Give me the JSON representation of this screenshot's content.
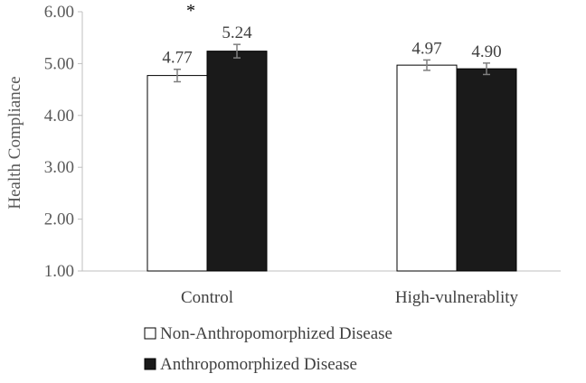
{
  "chart_data": {
    "type": "bar",
    "title": "",
    "xlabel": "",
    "ylabel": "Health Compliance",
    "ylim": [
      1.0,
      6.0
    ],
    "yticks": [
      "1.00",
      "2.00",
      "3.00",
      "4.00",
      "5.00",
      "6.00"
    ],
    "categories": [
      "Control",
      "High-vulnerablity"
    ],
    "series": [
      {
        "name": "Non-Anthropomorphized Disease",
        "values": [
          4.77,
          4.97
        ],
        "labels": [
          "4.77",
          "4.97"
        ],
        "error": [
          0.12,
          0.1
        ],
        "fill": "#ffffff"
      },
      {
        "name": "Anthropomorphized Disease",
        "values": [
          5.24,
          4.9
        ],
        "labels": [
          "5.24",
          "4.90"
        ],
        "error": [
          0.13,
          0.11
        ],
        "fill": "#1a1a1a"
      }
    ],
    "annotations": [
      {
        "text": "*",
        "category": "Control"
      }
    ],
    "grid": false,
    "legend_position": "bottom-left"
  }
}
